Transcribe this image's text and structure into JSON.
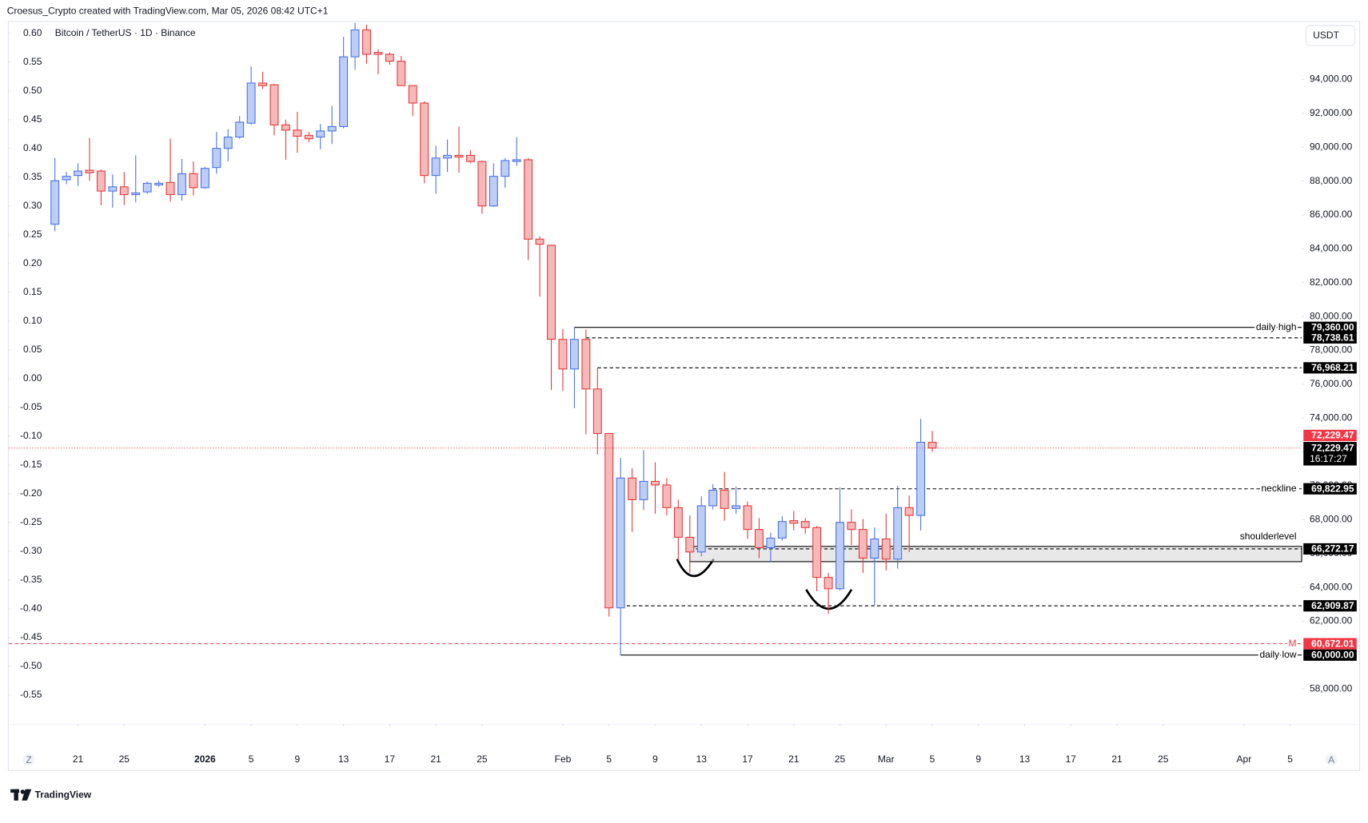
{
  "header": {
    "attribution": "Croesus_Crypto created with TradingView.com, Mar 05, 2026 08:42 UTC+1"
  },
  "footer": {
    "brand": "TradingView"
  },
  "controls": {
    "left": "Z",
    "right": "A"
  },
  "chart_data": {
    "type": "candlestick",
    "title": "Bitcoin / TetherUS · 1D · Binance",
    "currency": "USDT",
    "up_color": "#4a72e8",
    "up_fill": "#bccdf6",
    "down_color": "#e5393a",
    "down_fill": "#f6b9b9",
    "grid": false,
    "x": [
      "Dec 19",
      "Dec 20",
      "Dec 21",
      "Dec 22",
      "Dec 23",
      "Dec 24",
      "Dec 25",
      "Dec 26",
      "Dec 27",
      "Dec 28",
      "Dec 29",
      "Dec 30",
      "Dec 31",
      "Jan 1",
      "Jan 2",
      "Jan 3",
      "Jan 4",
      "Jan 5",
      "Jan 6",
      "Jan 7",
      "Jan 8",
      "Jan 9",
      "Jan 10",
      "Jan 11",
      "Jan 12",
      "Jan 13",
      "Jan 14",
      "Jan 15",
      "Jan 16",
      "Jan 17",
      "Jan 18",
      "Jan 19",
      "Jan 20",
      "Jan 21",
      "Jan 22",
      "Jan 23",
      "Jan 24",
      "Jan 25",
      "Jan 26",
      "Jan 27",
      "Jan 28",
      "Jan 29",
      "Jan 30",
      "Jan 31",
      "Feb 1",
      "Feb 2",
      "Feb 3",
      "Feb 4",
      "Feb 5",
      "Feb 6",
      "Feb 7",
      "Feb 8",
      "Feb 9",
      "Feb 10",
      "Feb 11",
      "Feb 12",
      "Feb 13",
      "Feb 14",
      "Feb 15",
      "Feb 16",
      "Feb 17",
      "Feb 18",
      "Feb 19",
      "Feb 20",
      "Feb 21",
      "Feb 22",
      "Feb 23",
      "Feb 24",
      "Feb 25",
      "Feb 26",
      "Feb 27",
      "Feb 28",
      "Mar 1",
      "Mar 2",
      "Mar 3",
      "Mar 4",
      "Mar 5"
    ],
    "open": [
      85450,
      88080,
      88330,
      88640,
      88590,
      87410,
      87660,
      87200,
      87360,
      87770,
      87920,
      87200,
      88440,
      87610,
      88800,
      89930,
      90600,
      91420,
      93790,
      93690,
      91320,
      91010,
      90700,
      90600,
      90960,
      91220,
      95340,
      96930,
      95600,
      95490,
      95080,
      93640,
      92610,
      88330,
      89360,
      89520,
      89520,
      89160,
      86530,
      88280,
      89160,
      89260,
      84570,
      84210,
      78650,
      76900,
      78650,
      75720,
      73090,
      62790,
      70460,
      69180,
      70260,
      70050,
      68710,
      66960,
      66090,
      68820,
      69740,
      68660,
      68820,
      67420,
      66340,
      66910,
      67940,
      67890,
      67530,
      64590,
      63920,
      67840,
      67420,
      65730,
      66860,
      65670,
      68710,
      68250,
      72570
    ],
    "high": [
      89360,
      88540,
      89050,
      90550,
      88690,
      88390,
      88540,
      89520,
      87970,
      88020,
      90500,
      89310,
      89160,
      88850,
      90910,
      91060,
      91840,
      94770,
      94460,
      93740,
      91630,
      92090,
      90910,
      91370,
      92450,
      96520,
      97350,
      97240,
      95800,
      95600,
      95390,
      93640,
      92710,
      90080,
      90450,
      91220,
      89830,
      89210,
      89050,
      89360,
      90600,
      89360,
      84730,
      84210,
      79270,
      79360,
      79220,
      76950,
      73090,
      71650,
      71030,
      72110,
      71390,
      70460,
      69180,
      68250,
      69380,
      70100,
      70820,
      69950,
      69070,
      68090,
      67220,
      68200,
      68510,
      68090,
      67630,
      64850,
      69900,
      68610,
      68040,
      67530,
      68350,
      70000,
      69430,
      73960,
      73240
    ],
    "low": [
      85040,
      87820,
      87720,
      88020,
      86580,
      86430,
      86580,
      86740,
      87250,
      87660,
      86790,
      86840,
      87150,
      87560,
      88440,
      89160,
      90500,
      91320,
      93430,
      90700,
      89260,
      89670,
      90290,
      89880,
      90190,
      91110,
      94570,
      94930,
      94310,
      94870,
      93640,
      91840,
      87870,
      87250,
      88540,
      88490,
      89050,
      86070,
      86480,
      87610,
      88900,
      83340,
      81180,
      75660,
      75610,
      74580,
      73040,
      71850,
      62270,
      60000,
      67270,
      68560,
      68350,
      68250,
      65620,
      64850,
      65830,
      68610,
      67940,
      68350,
      66860,
      65730,
      65470,
      66760,
      67370,
      67170,
      63770,
      62430,
      63820,
      66500,
      64850,
      62940,
      65000,
      65110,
      66090,
      67370,
      72010
    ],
    "close": [
      88020,
      88280,
      88590,
      88490,
      87410,
      87660,
      87200,
      87300,
      87870,
      87870,
      87200,
      88440,
      87610,
      88750,
      89930,
      90600,
      91480,
      93790,
      93640,
      91320,
      91010,
      90650,
      90500,
      90960,
      91220,
      95340,
      96930,
      95490,
      95490,
      95080,
      93640,
      92610,
      88330,
      89360,
      89520,
      89420,
      89160,
      86530,
      88280,
      89210,
      89260,
      84570,
      84270,
      78650,
      76900,
      78650,
      75720,
      73090,
      62790,
      70460,
      69180,
      70260,
      70050,
      68710,
      66960,
      66090,
      68820,
      69740,
      68660,
      68820,
      67420,
      66340,
      66910,
      67890,
      67790,
      67530,
      64590,
      63920,
      67840,
      67420,
      65730,
      66860,
      65670,
      68710,
      68250,
      72570,
      72230
    ],
    "xlim": [
      "Dec 15",
      "Apr 6"
    ],
    "xticks": [
      {
        "value": "Dec 21",
        "label": "21"
      },
      {
        "value": "Dec 25",
        "label": "25"
      },
      {
        "value": "Jan 1",
        "label": "2026"
      },
      {
        "value": "Jan 5",
        "label": "5"
      },
      {
        "value": "Jan 9",
        "label": "9"
      },
      {
        "value": "Jan 13",
        "label": "13"
      },
      {
        "value": "Jan 17",
        "label": "17"
      },
      {
        "value": "Jan 21",
        "label": "21"
      },
      {
        "value": "Jan 25",
        "label": "25"
      },
      {
        "value": "Feb 1",
        "label": "Feb"
      },
      {
        "value": "Feb 5",
        "label": "5"
      },
      {
        "value": "Feb 9",
        "label": "9"
      },
      {
        "value": "Feb 13",
        "label": "13"
      },
      {
        "value": "Feb 17",
        "label": "17"
      },
      {
        "value": "Feb 21",
        "label": "21"
      },
      {
        "value": "Feb 25",
        "label": "25"
      },
      {
        "value": "Mar 1",
        "label": "Mar"
      },
      {
        "value": "Mar 5",
        "label": "5"
      },
      {
        "value": "Mar 9",
        "label": "9"
      },
      {
        "value": "Mar 13",
        "label": "13"
      },
      {
        "value": "Mar 17",
        "label": "17"
      },
      {
        "value": "Mar 21",
        "label": "21"
      },
      {
        "value": "Mar 25",
        "label": "25"
      },
      {
        "value": "Apr 1",
        "label": "Apr"
      },
      {
        "value": "Apr 5",
        "label": "5"
      }
    ],
    "ylim": [
      55940,
      97400
    ],
    "yticks": [
      {
        "value": 58000,
        "label": "58,000.00"
      },
      {
        "value": 60000,
        "label": "60,000.00"
      },
      {
        "value": 62000,
        "label": "62,000.00"
      },
      {
        "value": 64000,
        "label": "64,000.00"
      },
      {
        "value": 66000,
        "label": "66,000.00"
      },
      {
        "value": 68000,
        "label": "68,000.00"
      },
      {
        "value": 70000,
        "label": "70,000.00"
      },
      {
        "value": 72000,
        "label": "72,000.00"
      },
      {
        "value": 74000,
        "label": "74,000.00"
      },
      {
        "value": 76000,
        "label": "76,000.00"
      },
      {
        "value": 78000,
        "label": "78,000.00"
      },
      {
        "value": 80000,
        "label": "80,000.00"
      },
      {
        "value": 82000,
        "label": "82,000.00"
      },
      {
        "value": 84000,
        "label": "84,000.00"
      },
      {
        "value": 86000,
        "label": "86,000.00"
      },
      {
        "value": 88000,
        "label": "88,000.00"
      },
      {
        "value": 90000,
        "label": "90,000.00"
      },
      {
        "value": 92000,
        "label": "92,000.00"
      },
      {
        "value": 94000,
        "label": "94,000.00"
      }
    ],
    "y2lim": [
      -0.6,
      0.62
    ],
    "y2ticks": [
      {
        "value": 0.6,
        "label": "0.60"
      },
      {
        "value": 0.55,
        "label": "0.55"
      },
      {
        "value": 0.5,
        "label": "0.50"
      },
      {
        "value": 0.45,
        "label": "0.45"
      },
      {
        "value": 0.4,
        "label": "0.40"
      },
      {
        "value": 0.35,
        "label": "0.35"
      },
      {
        "value": 0.3,
        "label": "0.30"
      },
      {
        "value": 0.25,
        "label": "0.25"
      },
      {
        "value": 0.2,
        "label": "0.20"
      },
      {
        "value": 0.15,
        "label": "0.15"
      },
      {
        "value": 0.1,
        "label": "0.10"
      },
      {
        "value": 0.05,
        "label": "0.05"
      },
      {
        "value": 0,
        "label": "0.00"
      },
      {
        "value": -0.05,
        "label": "-0.05"
      },
      {
        "value": -0.1,
        "label": "-0.10"
      },
      {
        "value": -0.15,
        "label": "-0.15"
      },
      {
        "value": -0.2,
        "label": "-0.20"
      },
      {
        "value": -0.25,
        "label": "-0.25"
      },
      {
        "value": -0.3,
        "label": "-0.30"
      },
      {
        "value": -0.35,
        "label": "-0.35"
      },
      {
        "value": -0.4,
        "label": "-0.40"
      },
      {
        "value": -0.45,
        "label": "-0.45"
      },
      {
        "value": -0.5,
        "label": "-0.50"
      },
      {
        "value": -0.55,
        "label": "-0.55"
      }
    ],
    "annotations": [
      {
        "text": "daily high",
        "value": 79360,
        "label": "79,360.00",
        "start": "Feb 2",
        "style": "solid",
        "color": "#000000"
      },
      {
        "value": 78738.61,
        "label": "78,738.61",
        "start": "Feb 3",
        "style": "dashed",
        "color": "#000000"
      },
      {
        "value": 76968.21,
        "label": "76,968.21",
        "start": "Feb 4",
        "style": "dashed",
        "color": "#000000"
      },
      {
        "text": "neckline",
        "value": 69822.95,
        "label": "69,822.95",
        "start": "Feb 14",
        "style": "dashed",
        "color": "#000000"
      },
      {
        "text": "shoulderlevel",
        "value": 66272.17,
        "label": "66,272.17",
        "start": "Feb 12",
        "style": "dashed",
        "color": "#000000",
        "zone": [
          65520,
          66420
        ]
      },
      {
        "value": 62909.87,
        "label": "62,909.87",
        "start": "Feb 6",
        "style": "dashed",
        "color": "#000000"
      },
      {
        "text": "M",
        "value": 60672.01,
        "label": "60,672.01",
        "start": "Dec 15",
        "style": "dashed",
        "color": "#f23645"
      },
      {
        "text": "daily low",
        "value": 60000,
        "label": "60,000.00",
        "start": "Feb 6",
        "style": "solid",
        "color": "#000000"
      }
    ],
    "last_price": {
      "value": 72229.47,
      "label": "72,229.47",
      "countdown": "16:17:27",
      "color": "#f23645"
    }
  }
}
